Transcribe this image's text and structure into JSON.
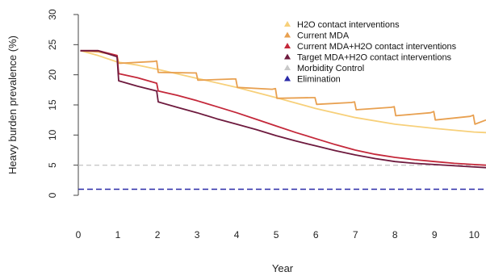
{
  "chart_data": {
    "type": "line",
    "title": "",
    "xlabel": "Year",
    "ylabel": "Heavy burden prevalence (%)",
    "xlim": [
      0,
      10.3
    ],
    "ylim": [
      0,
      30
    ],
    "xticks": [
      0,
      1,
      2,
      3,
      4,
      5,
      6,
      7,
      8,
      9,
      10
    ],
    "yticks": [
      0,
      5,
      10,
      15,
      20,
      25,
      30
    ],
    "legend_position": "top-right",
    "series": [
      {
        "name": "H2O contact interventions",
        "color": "#f7d07a",
        "x": [
          0.05,
          0.5,
          1,
          1.5,
          2,
          3,
          4,
          5,
          6,
          7,
          8,
          9,
          10,
          10.3
        ],
        "y": [
          24,
          23.2,
          22.1,
          21.6,
          20.9,
          19.4,
          17.9,
          16.2,
          14.4,
          12.9,
          11.8,
          11.1,
          10.5,
          10.4
        ]
      },
      {
        "name": "Current MDA",
        "color": "#e8a050",
        "x": [
          0.05,
          0.5,
          0.98,
          1.02,
          1.9,
          1.98,
          2.02,
          2.9,
          2.98,
          3.02,
          3.9,
          3.98,
          4.02,
          4.9,
          4.98,
          5.02,
          5.9,
          5.98,
          6.02,
          6.9,
          6.98,
          7.02,
          7.9,
          7.98,
          8.02,
          8.9,
          8.98,
          9.02,
          9.9,
          9.98,
          10.02,
          10.3
        ],
        "y": [
          24,
          23.8,
          23.2,
          21.9,
          22.2,
          22.3,
          20.4,
          20.3,
          20.3,
          19.1,
          19.3,
          19.3,
          17.9,
          17.6,
          17.7,
          16.1,
          16.2,
          16.2,
          15.1,
          15.4,
          15.5,
          14.2,
          14.6,
          14.7,
          13.2,
          13.7,
          13.9,
          12.5,
          13.1,
          13.3,
          11.8,
          12.5
        ]
      },
      {
        "name": "Current MDA+H2O contact interventions",
        "color": "#c4283a",
        "x": [
          0.05,
          0.5,
          0.98,
          1.02,
          1.5,
          1.98,
          2.02,
          2.5,
          3,
          3.5,
          4,
          4.5,
          5,
          5.5,
          6,
          6.5,
          7,
          7.5,
          8,
          8.5,
          9,
          9.5,
          10,
          10.3
        ],
        "y": [
          24,
          24,
          23.2,
          20.2,
          19.5,
          18.6,
          17.3,
          16.6,
          15.7,
          14.7,
          13.7,
          12.6,
          11.5,
          10.4,
          9.4,
          8.4,
          7.5,
          6.8,
          6.3,
          5.9,
          5.6,
          5.3,
          5.1,
          5.0
        ]
      },
      {
        "name": "Target MDA+H2O contact interventions",
        "color": "#6e1a3e",
        "x": [
          0.05,
          0.5,
          0.98,
          1.02,
          1.5,
          1.98,
          2.02,
          2.5,
          3,
          3.5,
          4,
          4.5,
          5,
          5.5,
          6,
          6.5,
          7,
          7.5,
          8,
          8.5,
          9,
          9.5,
          10,
          10.3
        ],
        "y": [
          24,
          24,
          23.0,
          19.0,
          18.1,
          17.3,
          15.5,
          14.6,
          13.7,
          12.7,
          11.8,
          10.9,
          9.9,
          9.0,
          8.2,
          7.4,
          6.7,
          6.1,
          5.6,
          5.3,
          5.1,
          4.9,
          4.7,
          4.6
        ]
      },
      {
        "name": "Morbidity Control",
        "color": "#c8c8c8",
        "style": "dashed",
        "x": [
          0,
          10.3
        ],
        "y": [
          5,
          5
        ]
      },
      {
        "name": "Elimination",
        "color": "#2a2aa8",
        "style": "dashed",
        "x": [
          0,
          10.3
        ],
        "y": [
          1,
          1
        ]
      }
    ],
    "legend": [
      {
        "label": "H2O contact interventions",
        "color": "#f7d07a"
      },
      {
        "label": "Current MDA",
        "color": "#e8a050"
      },
      {
        "label": "Current MDA+H2O contact interventions",
        "color": "#c4283a"
      },
      {
        "label": "Target MDA+H2O contact interventions",
        "color": "#6e1a3e"
      },
      {
        "label": "Morbidity Control",
        "color": "#c8c8c8"
      },
      {
        "label": "Elimination",
        "color": "#2a2aa8"
      }
    ]
  }
}
